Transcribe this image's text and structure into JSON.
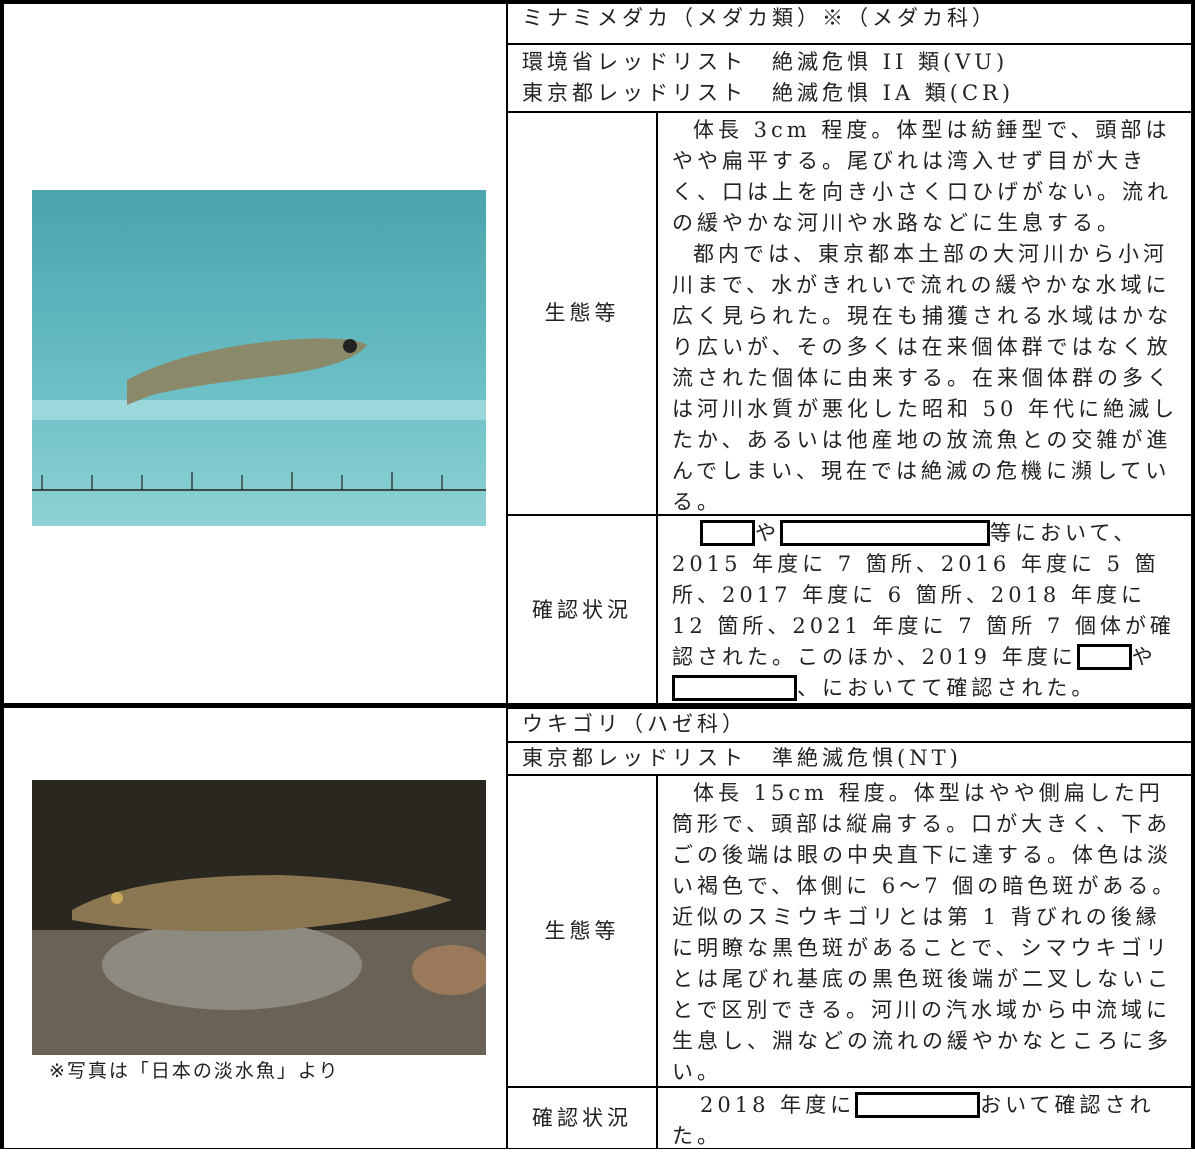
{
  "entries": [
    {
      "name": "ミナミメダカ（メダカ類）※（メダカ科）",
      "redlist": [
        "環境省レッドリスト　絶滅危惧 II 類(VU)",
        "東京都レッドリスト　絶滅危惧 IA 類(CR)"
      ],
      "ecology_label": "生態等",
      "ecology": [
        "体長 3cm 程度。体型は紡錘型で、頭部はやや扁平する。尾びれは湾入せず目が大きく、口は上を向き小さく口ひげがない。流れの緩やかな河川や水路などに生息する。",
        "都内では、東京都本土部の大河川から小河川まで、水がきれいで流れの緩やかな水域に広く見られた。現在も捕獲される水域はかなり広いが、その多くは在来個体群ではなく放流された個体に由来する。在来個体群の多くは河川水質が悪化した昭和 50 年代に絶滅したか、あるいは他産地の放流魚との交雑が進んでしまい、現在では絶滅の危機に瀕している。"
      ],
      "status_label": "確認状況",
      "status": [
        "や",
        "等において、2015 年度に 7 箇所、2016 年度に 5 箇所、2017 年度に 6 箇所、2018 年度に 12 箇所、2021 年度に 7 箇所 7 個体が確認された。このほか、2019 年度に",
        "や",
        "、においてて確認された。"
      ]
    },
    {
      "name": "ウキゴリ（ハゼ科）",
      "redlist": [
        "東京都レッドリスト　準絶滅危惧(NT)"
      ],
      "ecology_label": "生態等",
      "ecology": [
        "体長 15cm 程度。体型はやや側扁した円筒形で、頭部は縦扁する。口が大きく、下あごの後端は眼の中央直下に達する。体色は淡い褐色で、体側に 6～7 個の暗色斑がある。近似のスミウキゴリとは第 1 背びれの後縁に明瞭な黒色斑があることで、シマウキゴリとは尾びれ基底の黒色斑後端が二叉しないことで区別できる。河川の汽水域から中流域に生息し、淵などの流れの緩やかなところに多い。"
      ],
      "status_label": "確認状況",
      "status": [
        "2018 年度に",
        "おいて確認された。"
      ],
      "caption": "※写真は「日本の淡水魚」より"
    }
  ]
}
